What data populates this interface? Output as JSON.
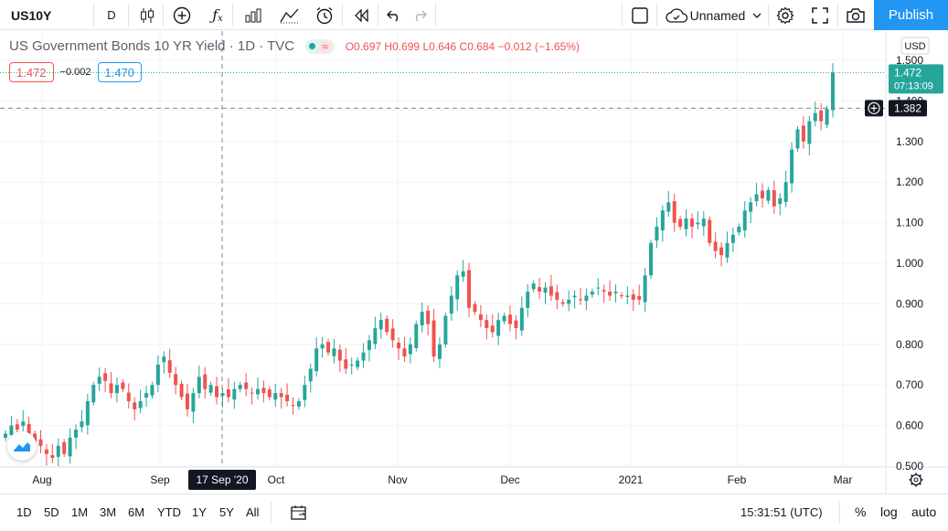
{
  "toolbar": {
    "symbol": "US10Y",
    "interval": "D",
    "layout_name": "Unnamed",
    "publish_label": "Publish",
    "icons": [
      "candles-icon",
      "add-indicator-icon",
      "fx-icon",
      "bar-chart-icon",
      "compare-icon",
      "alert-clock-icon",
      "replay-icon",
      "undo-icon",
      "redo-icon",
      "fullscreen-icon-square",
      "cloud-icon",
      "gear-icon",
      "fullscreen-icon",
      "camera-icon"
    ]
  },
  "legend": {
    "title": "US Government Bonds 10 YR Yield · 1D · TVC",
    "open_label": "O",
    "open": "0.697",
    "high_label": "H",
    "high": "0.699",
    "low_label": "L",
    "low": "0.646",
    "close_label": "C",
    "close": "0.684",
    "change": "−0.012 (−1.65%)",
    "wave_symbol": "≈",
    "bid": "1.472",
    "spread": "−0.002",
    "ask": "1.470"
  },
  "price_scale": {
    "currency": "USD",
    "last_price": "1.472",
    "countdown": "07:13:09",
    "crosshair_price": "1.382"
  },
  "time_axis": {
    "crosshair_date": "17 Sep '20"
  },
  "colors": {
    "up": "#26a69a",
    "down": "#ef5350",
    "accent": "#2196f3"
  },
  "chart_data": {
    "type": "candlestick",
    "title": "US Government Bonds 10 YR Yield · 1D · TVC",
    "y_ticks": [
      "1.500",
      "1.400",
      "1.300",
      "1.200",
      "1.100",
      "1.000",
      "0.900",
      "0.800",
      "0.700",
      "0.600",
      "0.500"
    ],
    "ylim": [
      0.45,
      1.55
    ],
    "x_ticks": [
      "Aug",
      "Sep",
      "Oct",
      "Nov",
      "Dec",
      "2021",
      "Feb",
      "Mar"
    ],
    "closes": [
      0.58,
      0.6,
      0.59,
      0.61,
      0.58,
      0.56,
      0.55,
      0.53,
      0.52,
      0.55,
      0.53,
      0.57,
      0.59,
      0.61,
      0.66,
      0.7,
      0.72,
      0.71,
      0.68,
      0.7,
      0.69,
      0.66,
      0.64,
      0.66,
      0.68,
      0.7,
      0.75,
      0.77,
      0.73,
      0.7,
      0.67,
      0.64,
      0.68,
      0.72,
      0.69,
      0.7,
      0.67,
      0.68,
      0.67,
      0.69,
      0.7,
      0.69,
      0.68,
      0.69,
      0.68,
      0.67,
      0.68,
      0.67,
      0.66,
      0.65,
      0.66,
      0.7,
      0.74,
      0.79,
      0.8,
      0.78,
      0.79,
      0.76,
      0.74,
      0.75,
      0.76,
      0.78,
      0.81,
      0.84,
      0.86,
      0.83,
      0.81,
      0.79,
      0.77,
      0.8,
      0.85,
      0.88,
      0.85,
      0.77,
      0.8,
      0.87,
      0.92,
      0.97,
      0.98,
      0.89,
      0.88,
      0.86,
      0.84,
      0.83,
      0.86,
      0.87,
      0.85,
      0.84,
      0.89,
      0.93,
      0.95,
      0.93,
      0.94,
      0.92,
      0.91,
      0.9,
      0.91,
      0.92,
      0.91,
      0.92,
      0.93,
      0.94,
      0.93,
      0.92,
      0.93,
      0.92,
      0.92,
      0.91,
      0.91,
      0.97,
      1.05,
      1.09,
      1.13,
      1.15,
      1.1,
      1.09,
      1.11,
      1.09,
      1.1,
      1.11,
      1.05,
      1.03,
      1.02,
      1.05,
      1.07,
      1.09,
      1.13,
      1.15,
      1.17,
      1.16,
      1.18,
      1.14,
      1.16,
      1.2,
      1.28,
      1.33,
      1.3,
      1.35,
      1.37,
      1.35,
      1.38,
      1.47
    ]
  },
  "bottom_bar": {
    "ranges": [
      "1D",
      "5D",
      "1M",
      "3M",
      "6M",
      "YTD",
      "1Y",
      "5Y",
      "All"
    ],
    "clock": "15:31:51 (UTC)",
    "percent_label": "%",
    "log_label": "log",
    "auto_label": "auto"
  }
}
